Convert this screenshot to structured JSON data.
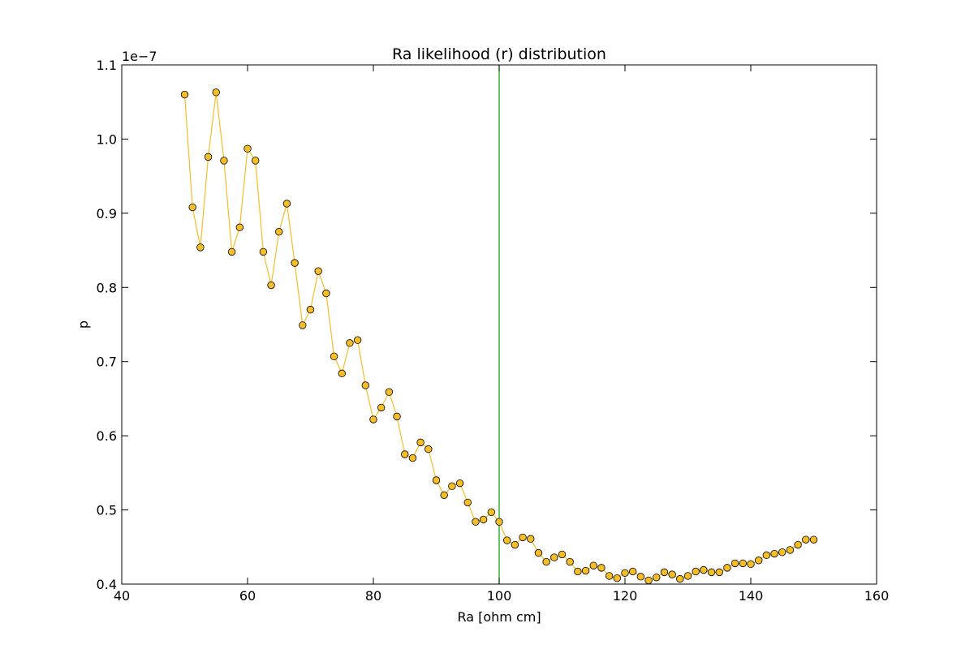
{
  "chart_data": {
    "type": "line",
    "title": "Ra likelihood (r) distribution",
    "xlabel": "Ra [ohm cm]",
    "ylabel": "p",
    "y_offset_label": "1e−7",
    "xlim": [
      40,
      160
    ],
    "ylim": [
      0.4,
      1.1
    ],
    "x_ticks": [
      40,
      60,
      80,
      100,
      120,
      140,
      160
    ],
    "y_ticks": [
      0.4,
      0.5,
      0.6,
      0.7,
      0.8,
      0.9,
      1.0,
      1.1
    ],
    "x_tick_labels": [
      "40",
      "60",
      "80",
      "100",
      "120",
      "140",
      "160"
    ],
    "y_tick_labels": [
      "0.4",
      "0.5",
      "0.6",
      "0.7",
      "0.8",
      "0.9",
      "1.0",
      "1.1"
    ],
    "grid": false,
    "vline": {
      "x": 100,
      "color": "#00a000"
    },
    "series": [
      {
        "color": "#f5bd27",
        "marker": "circle",
        "x": [
          50.0,
          51.25,
          52.5,
          53.75,
          55.0,
          56.25,
          57.5,
          58.75,
          60.0,
          61.25,
          62.5,
          63.75,
          65.0,
          66.25,
          67.5,
          68.75,
          70.0,
          71.25,
          72.5,
          73.75,
          75.0,
          76.25,
          77.5,
          78.75,
          80.0,
          81.25,
          82.5,
          83.75,
          85.0,
          86.25,
          87.5,
          88.75,
          90.0,
          91.25,
          92.5,
          93.75,
          95.0,
          96.25,
          97.5,
          98.75,
          100.0,
          101.25,
          102.5,
          103.75,
          105.0,
          106.25,
          107.5,
          108.75,
          110.0,
          111.25,
          112.5,
          113.75,
          115.0,
          116.25,
          117.5,
          118.75,
          120.0,
          121.25,
          122.5,
          123.75,
          125.0,
          126.25,
          127.5,
          128.75,
          130.0,
          131.25,
          132.5,
          133.75,
          135.0,
          136.25,
          137.5,
          138.75,
          140.0,
          141.25,
          142.5,
          143.75,
          145.0,
          146.25,
          147.5,
          148.75,
          150.0
        ],
        "y": [
          1.06,
          0.908,
          0.854,
          0.976,
          1.063,
          0.971,
          0.848,
          0.881,
          0.987,
          0.971,
          0.848,
          0.803,
          0.875,
          0.913,
          0.833,
          0.749,
          0.77,
          0.822,
          0.792,
          0.707,
          0.684,
          0.725,
          0.729,
          0.668,
          0.622,
          0.638,
          0.659,
          0.626,
          0.575,
          0.57,
          0.591,
          0.582,
          0.54,
          0.52,
          0.532,
          0.536,
          0.51,
          0.484,
          0.487,
          0.497,
          0.484,
          0.459,
          0.453,
          0.463,
          0.461,
          0.442,
          0.43,
          0.436,
          0.44,
          0.43,
          0.417,
          0.418,
          0.425,
          0.422,
          0.411,
          0.408,
          0.415,
          0.417,
          0.41,
          0.405,
          0.409,
          0.416,
          0.413,
          0.407,
          0.411,
          0.417,
          0.419,
          0.416,
          0.416,
          0.422,
          0.428,
          0.428,
          0.427,
          0.432,
          0.439,
          0.441,
          0.443,
          0.446,
          0.453,
          0.46,
          0.46
        ]
      }
    ]
  }
}
